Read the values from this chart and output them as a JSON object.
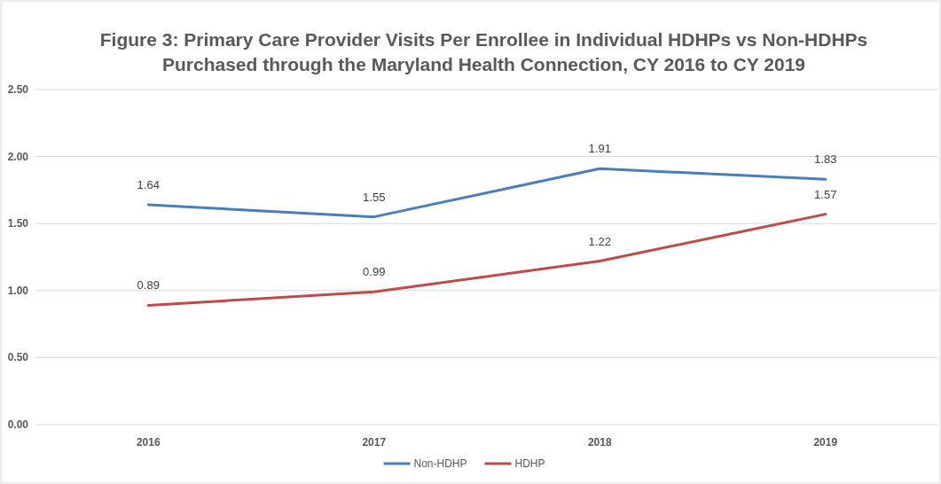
{
  "chart_data": {
    "type": "line",
    "title": "Figure 3: Primary Care Provider Visits Per Enrollee in Individual HDHPs vs Non-HDHPs\nPurchased through the Maryland Health Connection, CY 2016 to CY 2019",
    "categories": [
      "2016",
      "2017",
      "2018",
      "2019"
    ],
    "series": [
      {
        "name": "Non-HDHP",
        "color": "#4a7ebb",
        "values": [
          1.64,
          1.55,
          1.91,
          1.83
        ]
      },
      {
        "name": "HDHP",
        "color": "#be4b48",
        "values": [
          0.89,
          0.99,
          1.22,
          1.57
        ]
      }
    ],
    "ylim": [
      0,
      2.5
    ],
    "yticks": [
      {
        "value": 0,
        "label": "0.00"
      },
      {
        "value": 0.5,
        "label": "0.50"
      },
      {
        "value": 1,
        "label": "1.00"
      },
      {
        "value": 1.5,
        "label": "1.50"
      },
      {
        "value": 2,
        "label": "2.00"
      },
      {
        "value": 2.5,
        "label": "2.50"
      }
    ],
    "grid": "y",
    "legend": "bottom",
    "data_labels": true,
    "marker": "none",
    "line_style": "solid"
  }
}
